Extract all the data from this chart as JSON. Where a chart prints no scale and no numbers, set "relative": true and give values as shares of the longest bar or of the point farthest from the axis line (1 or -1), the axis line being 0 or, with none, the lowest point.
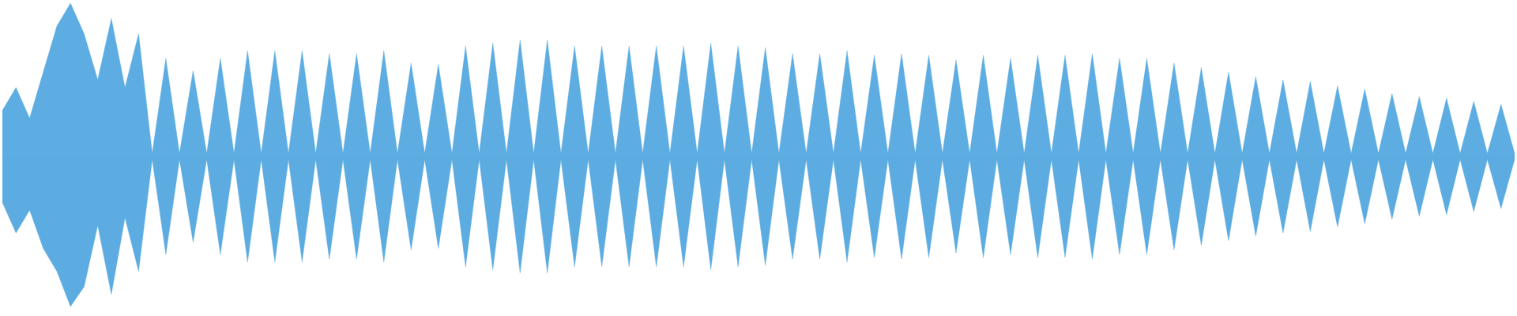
{
  "chart_data": {
    "type": "area",
    "relative": true,
    "categories": [
      null,
      null,
      null,
      null,
      null,
      null,
      null,
      null,
      null,
      null,
      null,
      null,
      null,
      null,
      null,
      null,
      null,
      null,
      null,
      null,
      null,
      null,
      null,
      null,
      null,
      null,
      null,
      null,
      null,
      null,
      null,
      null,
      null,
      null,
      null,
      null,
      null,
      null,
      null,
      null,
      null,
      null,
      null,
      null,
      null,
      null,
      null,
      null,
      null,
      null,
      null,
      null,
      null,
      null,
      null,
      null,
      null,
      null,
      null,
      null,
      null,
      null,
      null,
      null,
      null,
      null,
      null,
      null,
      null,
      null,
      null,
      null,
      null,
      null,
      null,
      null,
      null,
      null,
      null,
      null,
      null,
      null,
      null,
      null,
      null,
      null,
      null,
      null,
      null,
      null,
      null,
      null,
      null,
      null,
      null,
      null,
      null,
      null,
      null,
      null,
      null,
      null,
      null,
      null,
      null,
      null,
      null,
      null,
      null,
      null,
      null,
      null
    ],
    "series": [
      {
        "color": "#5dade2",
        "values": [
          0.3,
          0.45,
          0.25,
          0.55,
          0.85,
          1.0,
          0.8,
          0.5,
          0.9,
          0.45,
          0.8,
          0.02,
          0.64,
          0.02,
          0.56,
          0.02,
          0.64,
          0.02,
          0.69,
          0.02,
          0.69,
          0.02,
          0.69,
          0.02,
          0.67,
          0.02,
          0.67,
          0.02,
          0.69,
          0.02,
          0.61,
          0.02,
          0.6,
          0.02,
          0.72,
          0.02,
          0.74,
          0.02,
          0.76,
          0.02,
          0.76,
          0.02,
          0.72,
          0.02,
          0.72,
          0.02,
          0.72,
          0.02,
          0.72,
          0.02,
          0.72,
          0.02,
          0.74,
          0.02,
          0.72,
          0.02,
          0.71,
          0.02,
          0.67,
          0.02,
          0.67,
          0.02,
          0.69,
          0.02,
          0.66,
          0.02,
          0.67,
          0.02,
          0.66,
          0.02,
          0.63,
          0.02,
          0.66,
          0.02,
          0.64,
          0.02,
          0.66,
          0.02,
          0.66,
          0.02,
          0.67,
          0.02,
          0.64,
          0.02,
          0.64,
          0.02,
          0.61,
          0.02,
          0.58,
          0.02,
          0.55,
          0.02,
          0.52,
          0.02,
          0.5,
          0.02,
          0.49,
          0.02,
          0.46,
          0.02,
          0.44,
          0.02,
          0.41,
          0.02,
          0.39,
          0.02,
          0.38,
          0.02,
          0.36,
          0.02,
          0.34,
          0.02
        ]
      },
      {
        "color": "#5cace1",
        "values": [
          -0.3,
          -0.5,
          -0.35,
          -0.6,
          -0.75,
          -0.98,
          -0.85,
          -0.45,
          -0.9,
          -0.4,
          -0.75,
          -0.02,
          -0.64,
          -0.02,
          -0.56,
          -0.02,
          -0.64,
          -0.02,
          -0.69,
          -0.02,
          -0.69,
          -0.02,
          -0.69,
          -0.02,
          -0.67,
          -0.02,
          -0.67,
          -0.02,
          -0.69,
          -0.02,
          -0.61,
          -0.02,
          -0.6,
          -0.02,
          -0.72,
          -0.02,
          -0.74,
          -0.02,
          -0.76,
          -0.02,
          -0.76,
          -0.02,
          -0.72,
          -0.02,
          -0.72,
          -0.02,
          -0.72,
          -0.02,
          -0.72,
          -0.02,
          -0.72,
          -0.02,
          -0.74,
          -0.02,
          -0.72,
          -0.02,
          -0.71,
          -0.02,
          -0.67,
          -0.02,
          -0.67,
          -0.02,
          -0.69,
          -0.02,
          -0.66,
          -0.02,
          -0.67,
          -0.02,
          -0.66,
          -0.02,
          -0.63,
          -0.02,
          -0.66,
          -0.02,
          -0.64,
          -0.02,
          -0.66,
          -0.02,
          -0.66,
          -0.02,
          -0.67,
          -0.02,
          -0.64,
          -0.02,
          -0.64,
          -0.02,
          -0.61,
          -0.02,
          -0.58,
          -0.02,
          -0.55,
          -0.02,
          -0.52,
          -0.02,
          -0.5,
          -0.02,
          -0.49,
          -0.02,
          -0.46,
          -0.02,
          -0.44,
          -0.02,
          -0.41,
          -0.02,
          -0.39,
          -0.02,
          -0.38,
          -0.02,
          -0.36,
          -0.02,
          -0.34,
          -0.02
        ]
      }
    ]
  }
}
